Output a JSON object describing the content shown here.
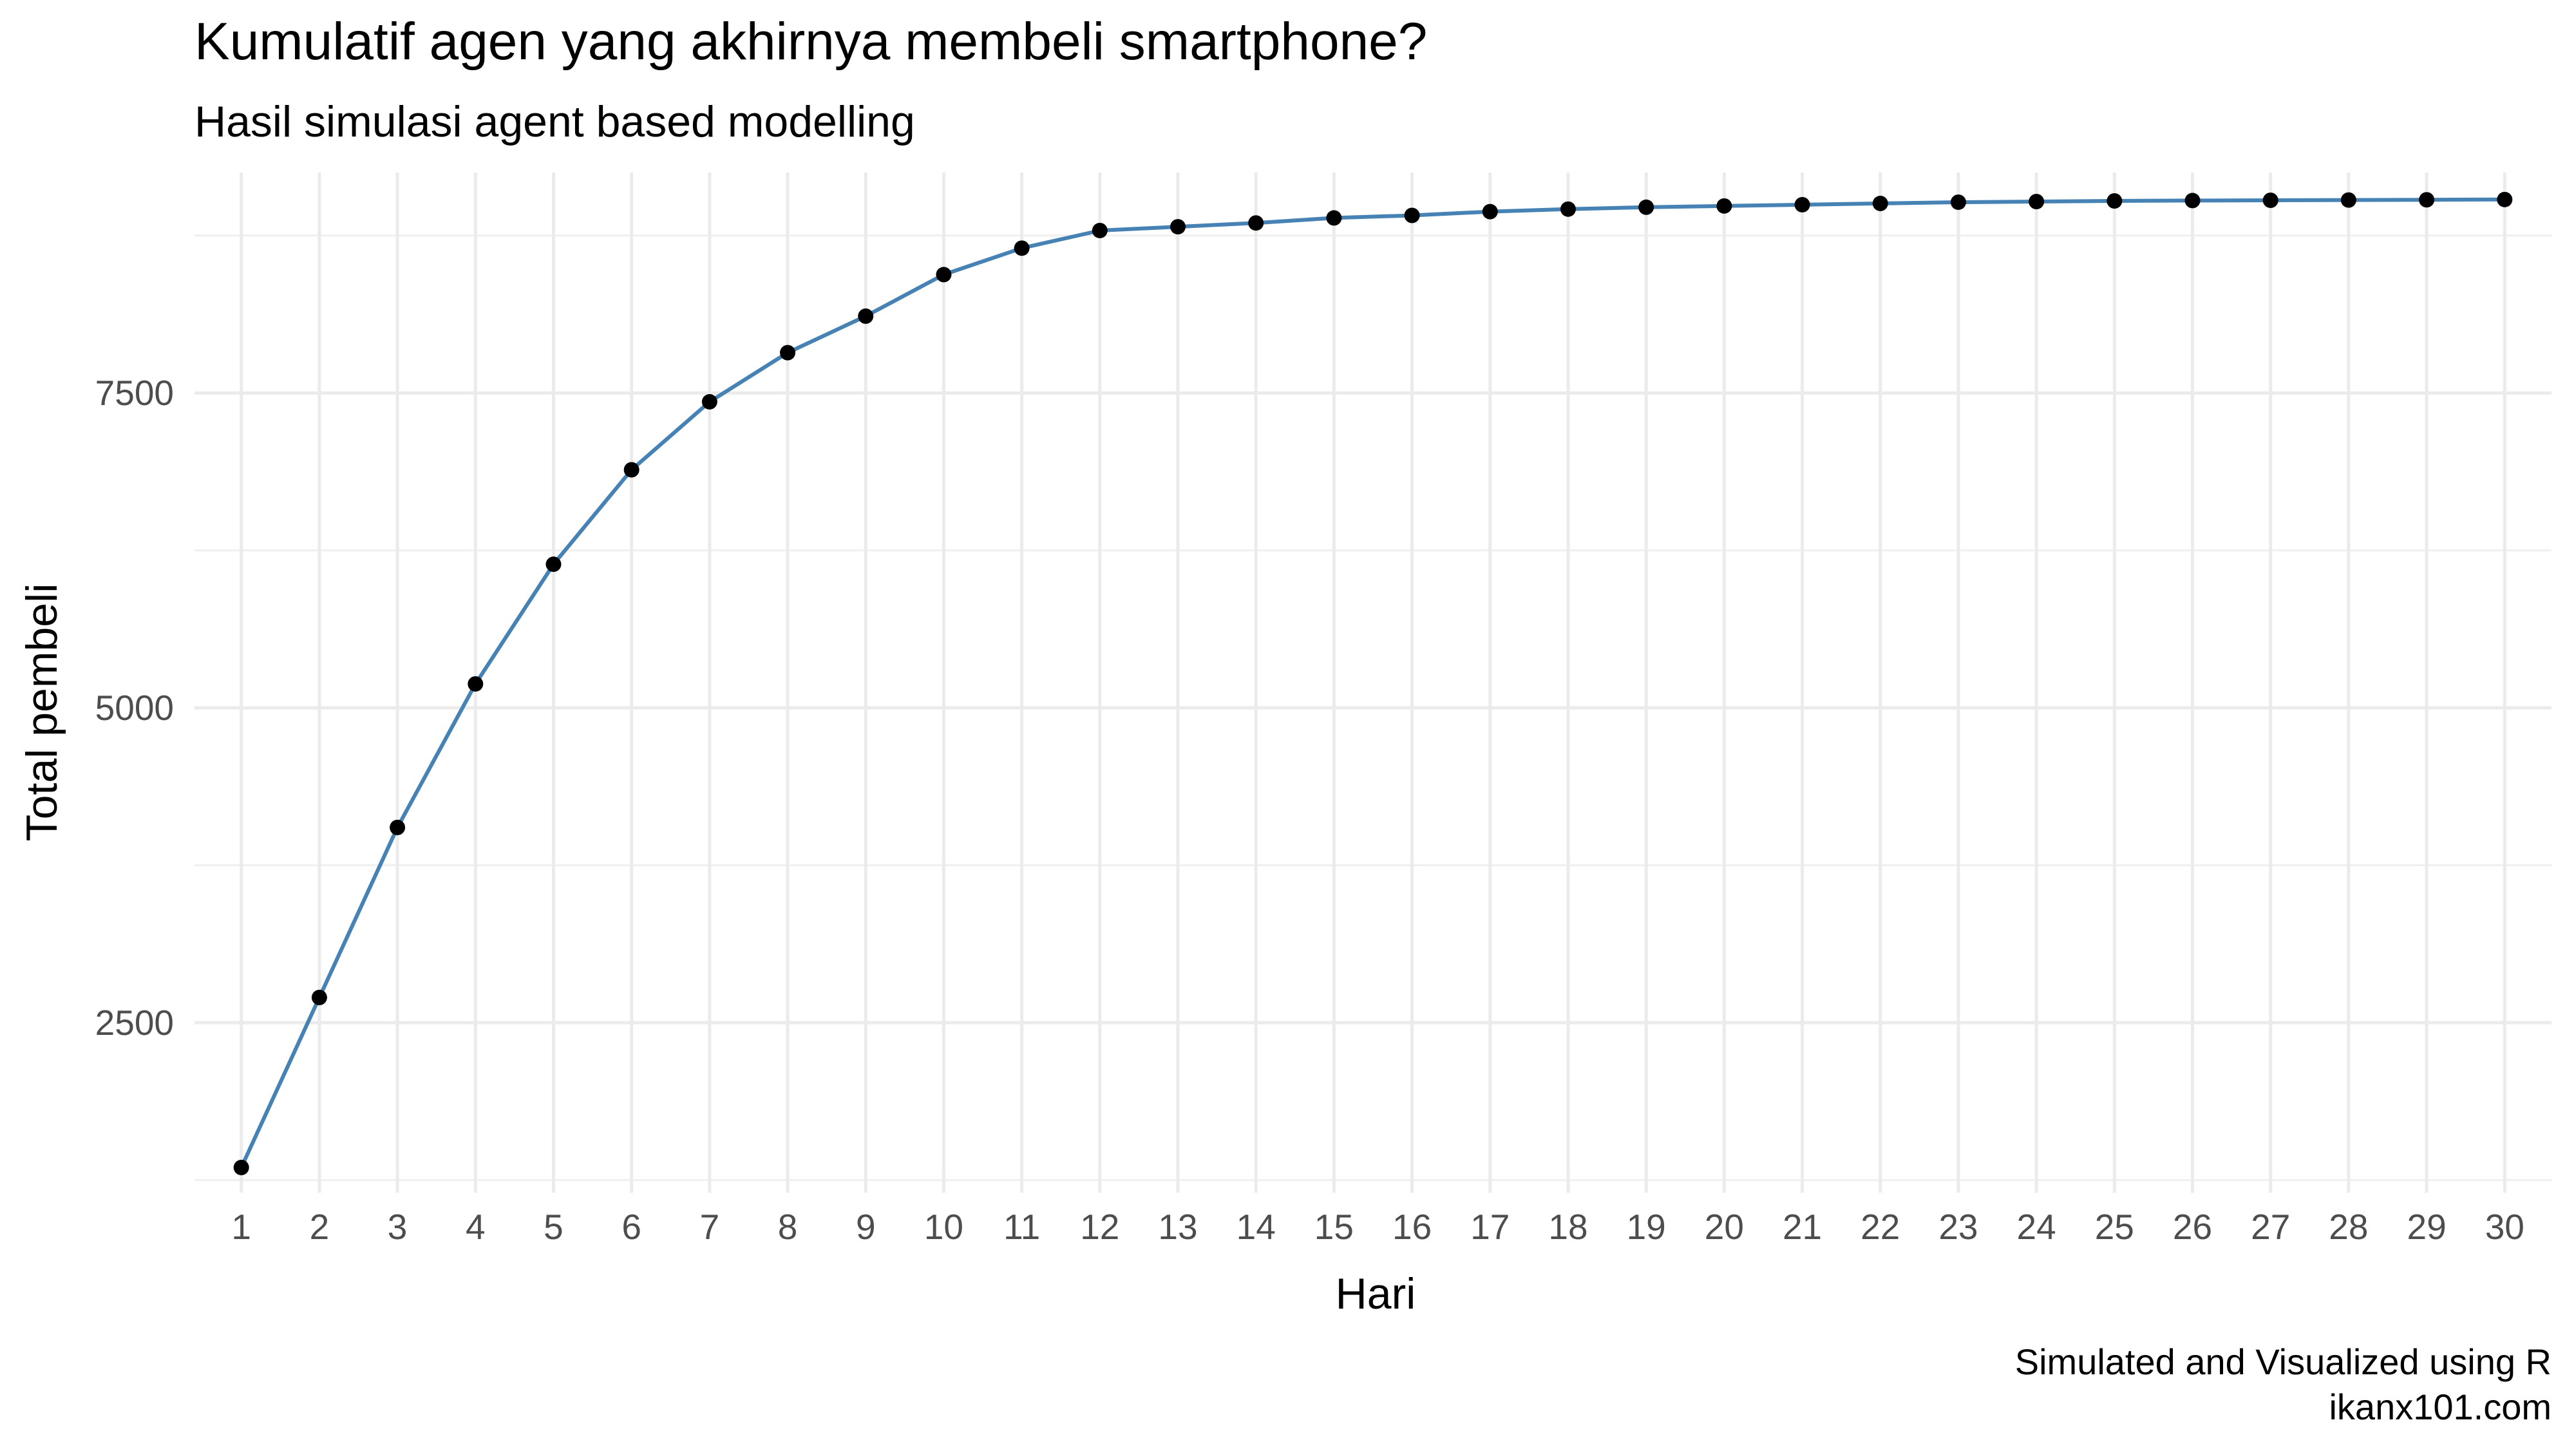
{
  "chart_data": {
    "type": "line",
    "title": "Kumulatif agen yang akhirnya membeli smartphone?",
    "subtitle": "Hasil simulasi agent based modelling",
    "xlabel": "Hari",
    "ylabel": "Total pembeli",
    "caption": [
      "Simulated and Visualized using R",
      "ikanx101.com"
    ],
    "x": [
      1,
      2,
      3,
      4,
      5,
      6,
      7,
      8,
      9,
      10,
      11,
      12,
      13,
      14,
      15,
      16,
      17,
      18,
      19,
      20,
      21,
      22,
      23,
      24,
      25,
      26,
      27,
      28,
      29,
      30
    ],
    "x_tick_labels": [
      "1",
      "2",
      "3",
      "4",
      "5",
      "6",
      "7",
      "8",
      "9",
      "10",
      "11",
      "12",
      "13",
      "14",
      "15",
      "16",
      "17",
      "18",
      "19",
      "20",
      "21",
      "22",
      "23",
      "24",
      "25",
      "26",
      "27",
      "28",
      "29",
      "30"
    ],
    "series": [
      {
        "values": [
          1350,
          2700,
          4050,
          5190,
          6140,
          6890,
          7430,
          7820,
          8110,
          8440,
          8650,
          8790,
          8820,
          8850,
          8890,
          8910,
          8940,
          8960,
          8975,
          8985,
          8995,
          9005,
          9015,
          9020,
          9025,
          9028,
          9030,
          9032,
          9034,
          9036
        ],
        "line_color": "#4682b4",
        "point_color": "#000000"
      }
    ],
    "ylim": [
      1150,
      9250
    ],
    "y_ticks": [
      2500,
      5000,
      7500
    ],
    "y_tick_labels": [
      "2500",
      "5000",
      "7500"
    ],
    "y_minor_ticks": [
      1250,
      3750,
      6250,
      8750
    ],
    "grid": true,
    "legend": "none"
  }
}
